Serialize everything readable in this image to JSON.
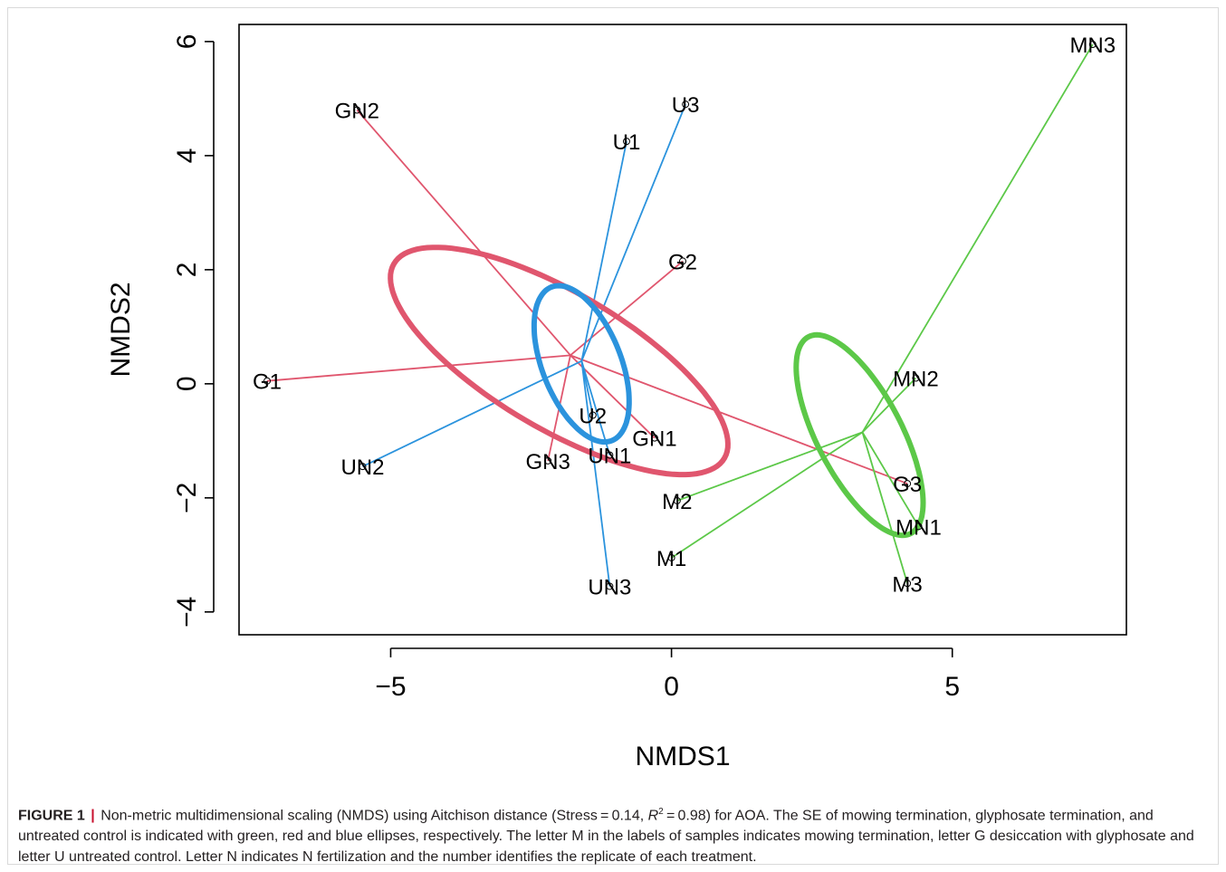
{
  "chart_data": {
    "type": "scatter",
    "xlabel": "NMDS1",
    "ylabel": "NMDS2",
    "xlim": [
      -7.7,
      8.1
    ],
    "ylim": [
      -4.4,
      6.3
    ],
    "xticks": [
      -5,
      0,
      5
    ],
    "xtick_labels": [
      "−5",
      "0",
      "5"
    ],
    "yticks": [
      -4,
      -2,
      0,
      2,
      4,
      6
    ],
    "ytick_labels": [
      "−4",
      "−2",
      "0",
      "2",
      "4",
      "6"
    ],
    "grid": false,
    "series": [
      {
        "color": "#e0566e",
        "centroid": [
          -1.8,
          0.5
        ],
        "ellipse": {
          "center": [
            -2.0,
            0.4
          ],
          "rx": 3.4,
          "ry": 1.2,
          "angle_deg": -30
        },
        "points": [
          {
            "label": "G1",
            "x": -7.2,
            "y": 0.05
          },
          {
            "label": "G2",
            "x": 0.2,
            "y": 2.15
          },
          {
            "label": "G3",
            "x": 4.2,
            "y": -1.75
          },
          {
            "label": "GN1",
            "x": -0.3,
            "y": -0.95
          },
          {
            "label": "GN2",
            "x": -5.6,
            "y": 4.8
          },
          {
            "label": "GN3",
            "x": -2.2,
            "y": -1.35
          }
        ]
      },
      {
        "color": "#2b93dd",
        "centroid": [
          -1.6,
          0.4
        ],
        "ellipse": {
          "center": [
            -1.6,
            0.35
          ],
          "rx": 1.45,
          "ry": 0.7,
          "angle_deg": -68
        },
        "points": [
          {
            "label": "U1",
            "x": -0.8,
            "y": 4.25
          },
          {
            "label": "U2",
            "x": -1.4,
            "y": -0.55
          },
          {
            "label": "U3",
            "x": 0.25,
            "y": 4.9
          },
          {
            "label": "UN1",
            "x": -1.1,
            "y": -1.25
          },
          {
            "label": "UN2",
            "x": -5.5,
            "y": -1.45
          },
          {
            "label": "UN3",
            "x": -1.1,
            "y": -3.55
          }
        ]
      },
      {
        "color": "#5cc848",
        "centroid": [
          3.4,
          -0.85
        ],
        "ellipse": {
          "center": [
            3.35,
            -0.9
          ],
          "rx": 1.95,
          "ry": 0.75,
          "angle_deg": -62
        },
        "points": [
          {
            "label": "M1",
            "x": 0.0,
            "y": -3.05
          },
          {
            "label": "M2",
            "x": 0.1,
            "y": -2.05
          },
          {
            "label": "M3",
            "x": 4.2,
            "y": -3.5
          },
          {
            "label": "MN1",
            "x": 4.4,
            "y": -2.5
          },
          {
            "label": "MN2",
            "x": 4.35,
            "y": 0.1
          },
          {
            "label": "MN3",
            "x": 7.5,
            "y": 5.95
          }
        ]
      }
    ]
  },
  "caption": {
    "label": "FIGURE 1",
    "sep": "|",
    "part1": " Non-metric multidimensional scaling (NMDS) using Aitchison distance (Stress = 0.14, ",
    "r_symbol": "R",
    "r_sup": "2",
    "part2": " = 0.98) for AOA. The SE of mowing termination, glyphosate termination, and untreated control is indicated with green, red and blue ellipses, respectively. The letter M in the labels of samples indicates mowing termination, letter G desiccation with glyphosate and letter U untreated control. Letter N indicates N fertilization and the number identifies the replicate of each treatment."
  }
}
